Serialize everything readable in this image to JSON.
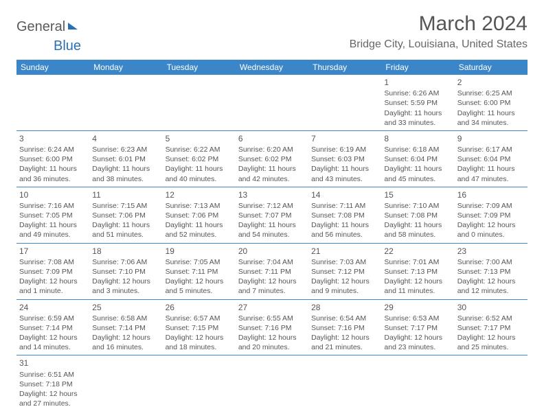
{
  "logo": {
    "part1": "General",
    "part2": "Blue"
  },
  "title": "March 2024",
  "location": "Bridge City, Louisiana, United States",
  "weekday_headers": [
    "Sunday",
    "Monday",
    "Tuesday",
    "Wednesday",
    "Thursday",
    "Friday",
    "Saturday"
  ],
  "colors": {
    "header_bg": "#3a86c8",
    "header_text": "#ffffff",
    "cell_border": "#3a86c8",
    "text": "#555555",
    "logo_blue": "#2a6fb5"
  },
  "fonts": {
    "title_size": 30,
    "location_size": 16,
    "header_size": 12,
    "cell_size": 10.5,
    "daynum_size": 12
  },
  "first_weekday_index": 5,
  "days": [
    {
      "n": 1,
      "sunrise": "6:26 AM",
      "sunset": "5:59 PM",
      "daylight": "11 hours and 33 minutes."
    },
    {
      "n": 2,
      "sunrise": "6:25 AM",
      "sunset": "6:00 PM",
      "daylight": "11 hours and 34 minutes."
    },
    {
      "n": 3,
      "sunrise": "6:24 AM",
      "sunset": "6:00 PM",
      "daylight": "11 hours and 36 minutes."
    },
    {
      "n": 4,
      "sunrise": "6:23 AM",
      "sunset": "6:01 PM",
      "daylight": "11 hours and 38 minutes."
    },
    {
      "n": 5,
      "sunrise": "6:22 AM",
      "sunset": "6:02 PM",
      "daylight": "11 hours and 40 minutes."
    },
    {
      "n": 6,
      "sunrise": "6:20 AM",
      "sunset": "6:02 PM",
      "daylight": "11 hours and 42 minutes."
    },
    {
      "n": 7,
      "sunrise": "6:19 AM",
      "sunset": "6:03 PM",
      "daylight": "11 hours and 43 minutes."
    },
    {
      "n": 8,
      "sunrise": "6:18 AM",
      "sunset": "6:04 PM",
      "daylight": "11 hours and 45 minutes."
    },
    {
      "n": 9,
      "sunrise": "6:17 AM",
      "sunset": "6:04 PM",
      "daylight": "11 hours and 47 minutes."
    },
    {
      "n": 10,
      "sunrise": "7:16 AM",
      "sunset": "7:05 PM",
      "daylight": "11 hours and 49 minutes."
    },
    {
      "n": 11,
      "sunrise": "7:15 AM",
      "sunset": "7:06 PM",
      "daylight": "11 hours and 51 minutes."
    },
    {
      "n": 12,
      "sunrise": "7:13 AM",
      "sunset": "7:06 PM",
      "daylight": "11 hours and 52 minutes."
    },
    {
      "n": 13,
      "sunrise": "7:12 AM",
      "sunset": "7:07 PM",
      "daylight": "11 hours and 54 minutes."
    },
    {
      "n": 14,
      "sunrise": "7:11 AM",
      "sunset": "7:08 PM",
      "daylight": "11 hours and 56 minutes."
    },
    {
      "n": 15,
      "sunrise": "7:10 AM",
      "sunset": "7:08 PM",
      "daylight": "11 hours and 58 minutes."
    },
    {
      "n": 16,
      "sunrise": "7:09 AM",
      "sunset": "7:09 PM",
      "daylight": "12 hours and 0 minutes."
    },
    {
      "n": 17,
      "sunrise": "7:08 AM",
      "sunset": "7:09 PM",
      "daylight": "12 hours and 1 minute."
    },
    {
      "n": 18,
      "sunrise": "7:06 AM",
      "sunset": "7:10 PM",
      "daylight": "12 hours and 3 minutes."
    },
    {
      "n": 19,
      "sunrise": "7:05 AM",
      "sunset": "7:11 PM",
      "daylight": "12 hours and 5 minutes."
    },
    {
      "n": 20,
      "sunrise": "7:04 AM",
      "sunset": "7:11 PM",
      "daylight": "12 hours and 7 minutes."
    },
    {
      "n": 21,
      "sunrise": "7:03 AM",
      "sunset": "7:12 PM",
      "daylight": "12 hours and 9 minutes."
    },
    {
      "n": 22,
      "sunrise": "7:01 AM",
      "sunset": "7:13 PM",
      "daylight": "12 hours and 11 minutes."
    },
    {
      "n": 23,
      "sunrise": "7:00 AM",
      "sunset": "7:13 PM",
      "daylight": "12 hours and 12 minutes."
    },
    {
      "n": 24,
      "sunrise": "6:59 AM",
      "sunset": "7:14 PM",
      "daylight": "12 hours and 14 minutes."
    },
    {
      "n": 25,
      "sunrise": "6:58 AM",
      "sunset": "7:14 PM",
      "daylight": "12 hours and 16 minutes."
    },
    {
      "n": 26,
      "sunrise": "6:57 AM",
      "sunset": "7:15 PM",
      "daylight": "12 hours and 18 minutes."
    },
    {
      "n": 27,
      "sunrise": "6:55 AM",
      "sunset": "7:16 PM",
      "daylight": "12 hours and 20 minutes."
    },
    {
      "n": 28,
      "sunrise": "6:54 AM",
      "sunset": "7:16 PM",
      "daylight": "12 hours and 21 minutes."
    },
    {
      "n": 29,
      "sunrise": "6:53 AM",
      "sunset": "7:17 PM",
      "daylight": "12 hours and 23 minutes."
    },
    {
      "n": 30,
      "sunrise": "6:52 AM",
      "sunset": "7:17 PM",
      "daylight": "12 hours and 25 minutes."
    },
    {
      "n": 31,
      "sunrise": "6:51 AM",
      "sunset": "7:18 PM",
      "daylight": "12 hours and 27 minutes."
    }
  ],
  "labels": {
    "sunrise": "Sunrise:",
    "sunset": "Sunset:",
    "daylight": "Daylight:"
  }
}
